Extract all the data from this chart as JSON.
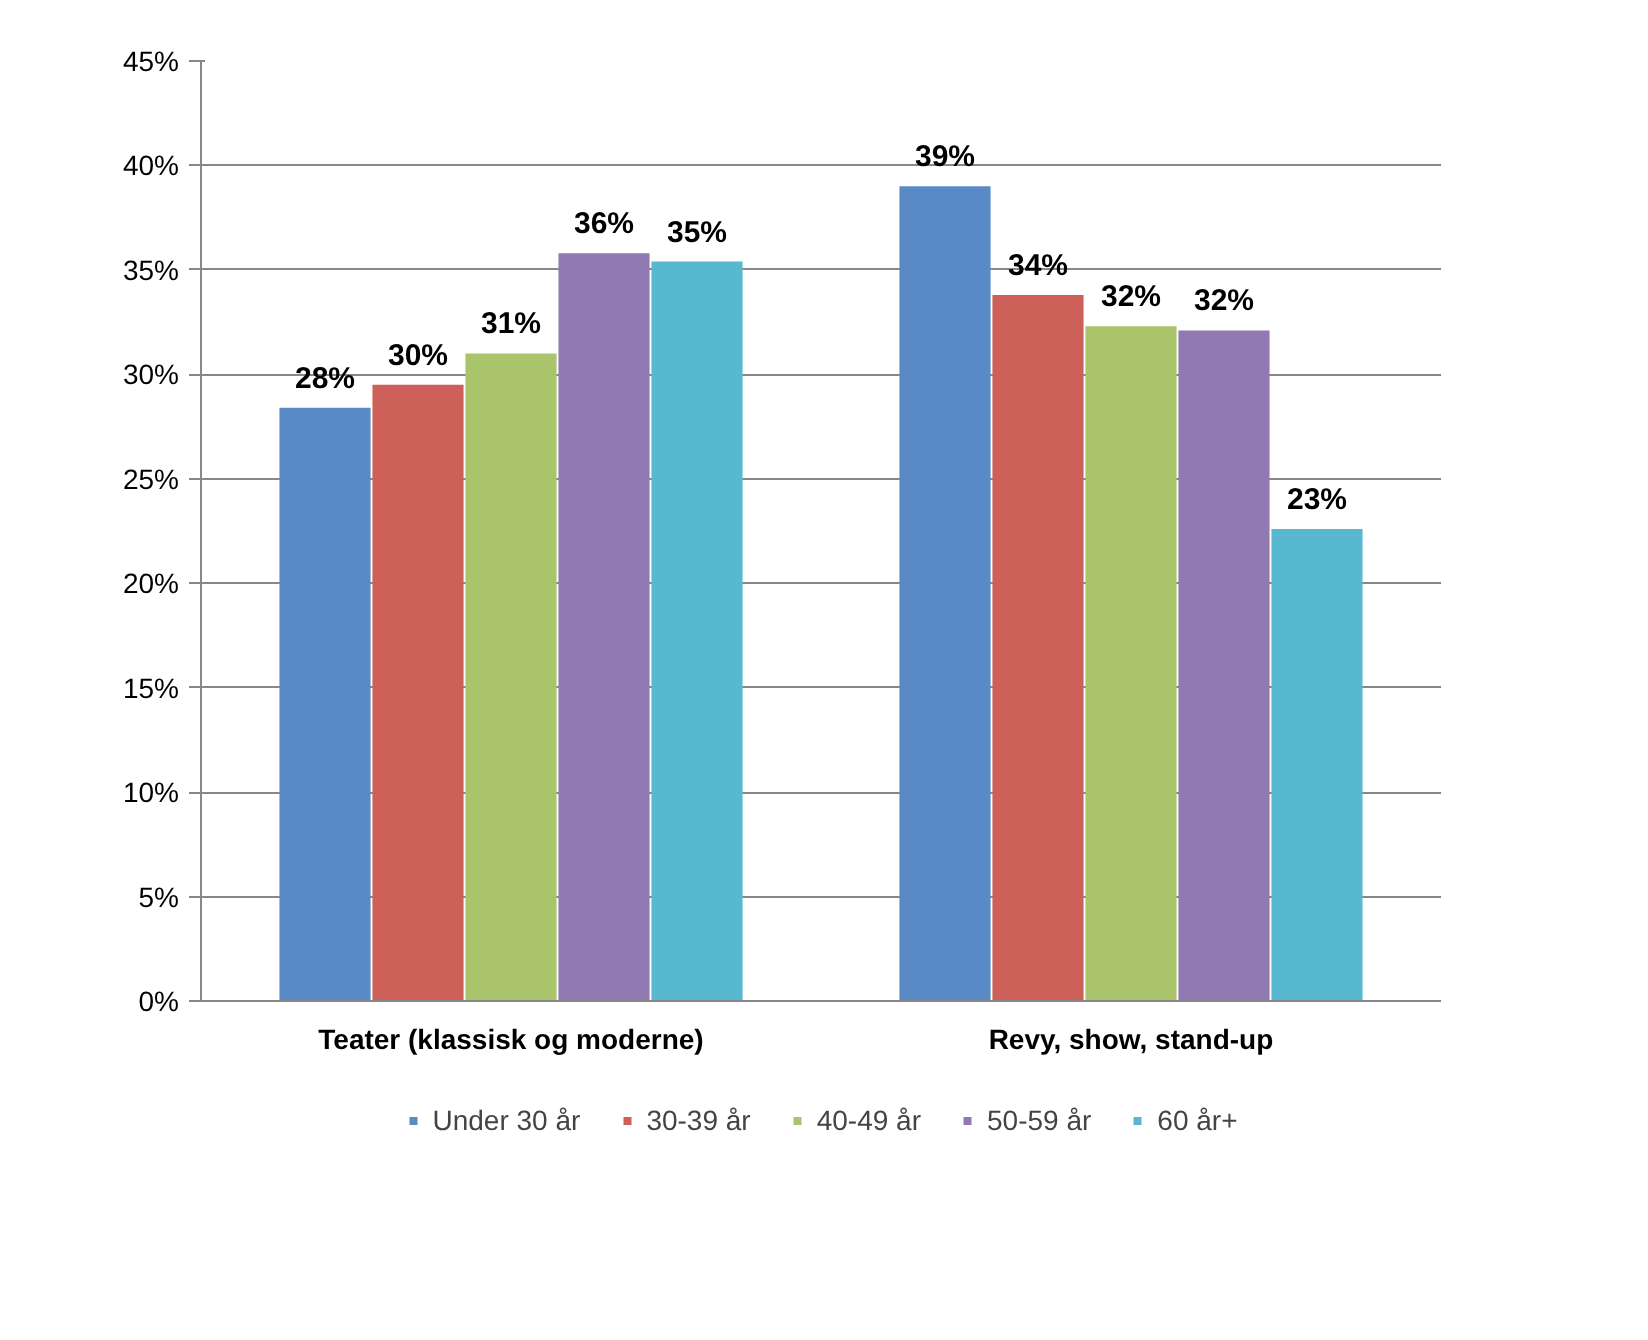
{
  "chart_data": {
    "type": "bar",
    "categories": [
      "Teater (klassisk og moderne)",
      "Revy, show, stand-up"
    ],
    "series": [
      {
        "name": "Under 30 år",
        "color": "#5a8ac6",
        "values": [
          28.4,
          39.0
        ],
        "value_labels": [
          "28%",
          "39%"
        ]
      },
      {
        "name": "30-39 år",
        "color": "#cd6159",
        "values": [
          29.5,
          33.8
        ],
        "value_labels": [
          "30%",
          "34%"
        ]
      },
      {
        "name": "40-49 år",
        "color": "#a9c46a",
        "values": [
          31.0,
          32.3
        ],
        "value_labels": [
          "31%",
          "32%"
        ]
      },
      {
        "name": "50-59 år",
        "color": "#9179b2",
        "values": [
          35.8,
          32.1
        ],
        "value_labels": [
          "36%",
          "32%"
        ]
      },
      {
        "name": "60 år+",
        "color": "#58b8cf",
        "values": [
          35.4,
          22.6
        ],
        "value_labels": [
          "35%",
          "23%"
        ]
      }
    ],
    "ylim": [
      0,
      45
    ],
    "yticks": [
      {
        "value": 0,
        "label": "0%"
      },
      {
        "value": 5,
        "label": "5%"
      },
      {
        "value": 10,
        "label": "10%"
      },
      {
        "value": 15,
        "label": "15%"
      },
      {
        "value": 20,
        "label": "20%"
      },
      {
        "value": 25,
        "label": "25%"
      },
      {
        "value": 30,
        "label": "30%"
      },
      {
        "value": 35,
        "label": "35%"
      },
      {
        "value": 40,
        "label": "40%"
      },
      {
        "value": 45,
        "label": "45%"
      }
    ],
    "grid": "y",
    "legend": "bottom"
  }
}
